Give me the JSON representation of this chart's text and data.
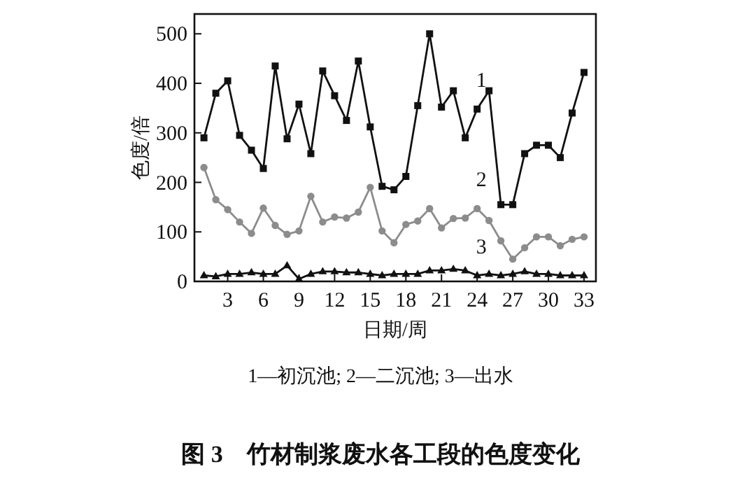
{
  "chart_data": {
    "type": "line",
    "title": "图 3　竹材制浆废水各工段的色度变化",
    "xlabel": "日期/周",
    "ylabel": "色度/倍",
    "annotations": [
      "1—初沉池; 2—二沉池; 3—出水"
    ],
    "x": [
      1,
      2,
      3,
      4,
      5,
      6,
      7,
      8,
      9,
      10,
      11,
      12,
      13,
      14,
      15,
      16,
      17,
      18,
      19,
      20,
      21,
      22,
      23,
      24,
      25,
      26,
      27,
      28,
      29,
      30,
      31,
      32,
      33
    ],
    "xlim": [
      0.2,
      34
    ],
    "xticks": [
      3,
      6,
      9,
      12,
      15,
      18,
      21,
      24,
      27,
      30,
      33
    ],
    "ylim": [
      0,
      540
    ],
    "yticks": [
      0,
      100,
      200,
      300,
      400,
      500
    ],
    "grid": false,
    "series": [
      {
        "name": "1",
        "color": "#111111",
        "marker": "square",
        "values": [
          290,
          380,
          405,
          295,
          265,
          228,
          435,
          288,
          358,
          258,
          425,
          375,
          325,
          445,
          312,
          192,
          185,
          212,
          355,
          500,
          352,
          385,
          290,
          348,
          385,
          155,
          155,
          258,
          275,
          275,
          250,
          340,
          422
        ]
      },
      {
        "name": "2",
        "color": "#8c8c8c",
        "marker": "circle",
        "values": [
          230,
          165,
          145,
          120,
          97,
          148,
          113,
          95,
          102,
          172,
          120,
          130,
          128,
          140,
          190,
          102,
          78,
          115,
          122,
          147,
          108,
          127,
          128,
          147,
          123,
          82,
          45,
          68,
          90,
          90,
          72,
          85,
          90
        ]
      },
      {
        "name": "3",
        "color": "#111111",
        "marker": "triangle",
        "values": [
          12,
          10,
          15,
          15,
          18,
          15,
          15,
          32,
          5,
          15,
          20,
          20,
          18,
          18,
          15,
          12,
          15,
          15,
          15,
          22,
          22,
          25,
          22,
          12,
          15,
          12,
          15,
          20,
          15,
          15,
          12,
          12,
          12
        ]
      }
    ]
  }
}
